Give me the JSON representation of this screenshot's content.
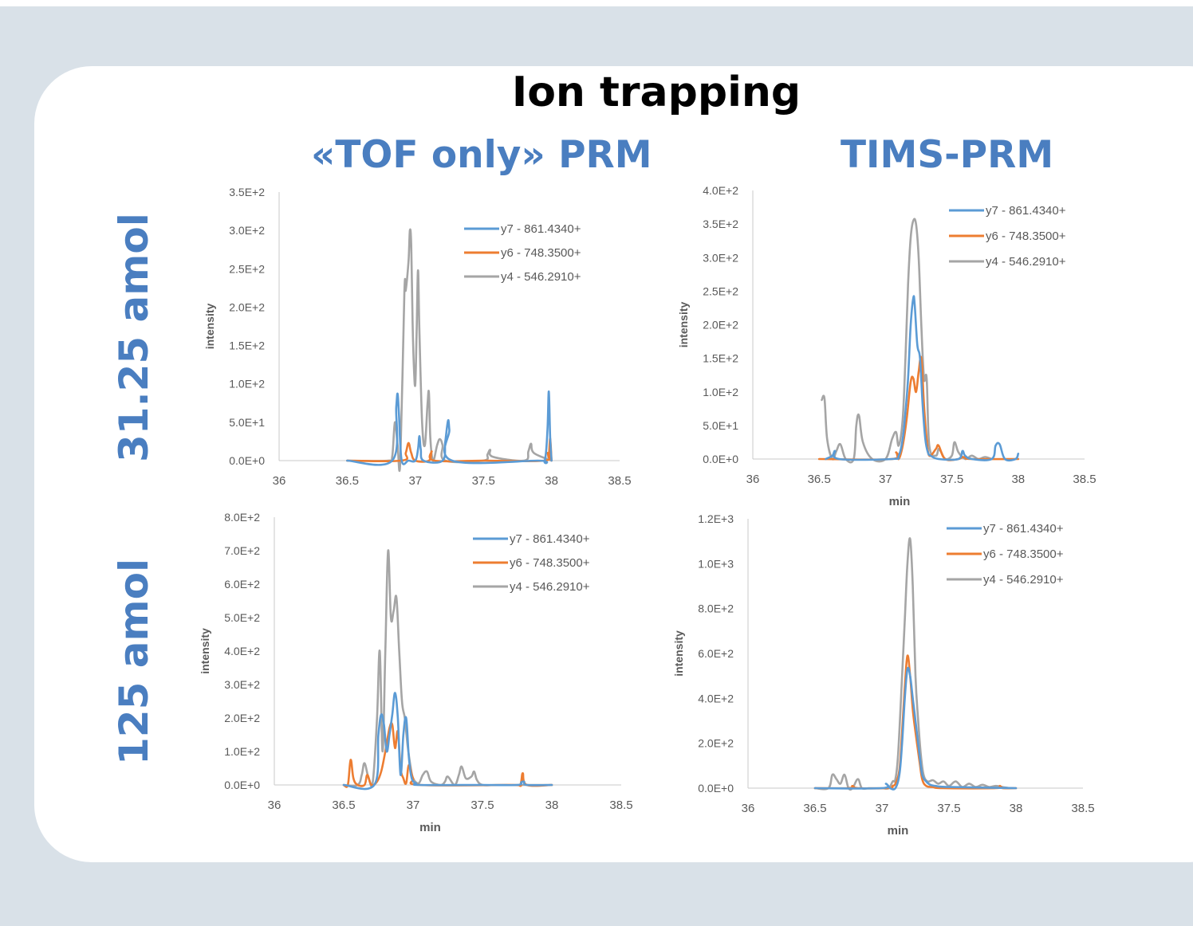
{
  "title": "Ion trapping",
  "columns": [
    "«TOF only» PRM",
    "TIMS-PRM"
  ],
  "rows": [
    "31.25 amol",
    "125 amol"
  ],
  "colors": {
    "accent": "#4a7ec0",
    "y7": "#5b9bd5",
    "y6": "#ed7d31",
    "y4": "#a5a5a5"
  },
  "chart_data": [
    {
      "type": "line",
      "panel": "31.25 amol / «TOF only» PRM",
      "ylabel": "intensity",
      "xlabel": "",
      "xlim": [
        36,
        38.5
      ],
      "x_ticks": [
        "36",
        "36.5",
        "37",
        "37.5",
        "38",
        "38.5"
      ],
      "ylim": [
        0,
        350
      ],
      "y_ticks": [
        "0.0E+0",
        "5.0E+1",
        "1.0E+2",
        "1.5E+2",
        "2.0E+2",
        "2.5E+2",
        "3.0E+2",
        "3.5E+2"
      ],
      "legend": "top-right",
      "series": [
        {
          "name": "y7 - 861.4340+",
          "x": [
            36.5,
            36.83,
            36.86,
            36.87,
            36.88,
            36.9,
            36.95,
            37.0,
            37.02,
            37.03,
            37.04,
            37.06,
            37.2,
            37.22,
            37.24,
            37.25,
            37.27,
            37.9,
            37.95,
            37.97,
            37.98,
            37.99,
            38.0
          ],
          "y": [
            0,
            0,
            70,
            87,
            60,
            0,
            0,
            0,
            15,
            32,
            15,
            0,
            0,
            25,
            52,
            40,
            0,
            0,
            0,
            40,
            90,
            30,
            0
          ]
        },
        {
          "name": "y6 - 748.3500+",
          "x": [
            36.5,
            36.9,
            36.93,
            36.95,
            36.97,
            37.0,
            37.1,
            37.12,
            37.14,
            37.5,
            37.95,
            37.97,
            37.98,
            37.99,
            38.0
          ],
          "y": [
            0,
            0,
            10,
            23,
            10,
            0,
            0,
            12,
            0,
            0,
            0,
            10,
            5,
            29,
            0
          ]
        },
        {
          "name": "y4 - 546.2910+",
          "x": [
            36.5,
            36.8,
            36.83,
            36.85,
            36.87,
            36.89,
            36.92,
            36.93,
            36.95,
            36.96,
            36.97,
            36.98,
            36.99,
            37.0,
            37.01,
            37.02,
            37.03,
            37.05,
            37.07,
            37.09,
            37.1,
            37.11,
            37.13,
            37.16,
            37.18,
            37.2,
            37.22,
            37.5,
            37.53,
            37.55,
            37.57,
            37.8,
            37.83,
            37.85,
            37.87,
            38.0
          ],
          "y": [
            0,
            0,
            5,
            50,
            20,
            0,
            220,
            222,
            260,
            300,
            280,
            180,
            120,
            100,
            170,
            248,
            170,
            50,
            20,
            75,
            88,
            30,
            0,
            20,
            28,
            20,
            0,
            0,
            8,
            14,
            5,
            0,
            12,
            22,
            10,
            0
          ]
        }
      ]
    },
    {
      "type": "line",
      "panel": "31.25 amol / TIMS-PRM",
      "ylabel": "intensity",
      "xlabel": "min",
      "xlim": [
        36,
        38.5
      ],
      "x_ticks": [
        "36",
        "36.5",
        "37",
        "37.5",
        "38",
        "38.5"
      ],
      "ylim": [
        0,
        400
      ],
      "y_ticks": [
        "0.0E+0",
        "5.0E+1",
        "1.0E+2",
        "1.5E+2",
        "2.0E+2",
        "2.5E+2",
        "3.0E+2",
        "3.5E+2",
        "4.0E+2"
      ],
      "legend": "top-right",
      "series": [
        {
          "name": "y7 - 861.4340+",
          "x": [
            36.55,
            36.6,
            36.62,
            36.65,
            37.05,
            37.1,
            37.13,
            37.15,
            37.17,
            37.19,
            37.21,
            37.22,
            37.24,
            37.26,
            37.28,
            37.3,
            37.32,
            37.34,
            37.4,
            37.55,
            37.58,
            37.6,
            37.65,
            37.8,
            37.83,
            37.86,
            37.9,
            37.98,
            38.0
          ],
          "y": [
            0,
            5,
            12,
            0,
            0,
            5,
            30,
            70,
            120,
            200,
            240,
            230,
            170,
            150,
            80,
            30,
            10,
            5,
            0,
            0,
            12,
            5,
            0,
            0,
            20,
            22,
            0,
            0,
            8
          ]
        },
        {
          "name": "y6 - 748.3500+",
          "x": [
            36.5,
            37.05,
            37.08,
            37.1,
            37.13,
            37.16,
            37.19,
            37.21,
            37.23,
            37.25,
            37.27,
            37.29,
            37.31,
            37.33,
            37.38,
            37.4,
            37.45,
            37.55,
            37.58,
            37.6,
            37.65,
            38.0
          ],
          "y": [
            0,
            0,
            10,
            0,
            20,
            60,
            115,
            120,
            100,
            130,
            150,
            80,
            30,
            5,
            15,
            20,
            0,
            0,
            3,
            2,
            0,
            0
          ]
        },
        {
          "name": "y4 - 546.2910+",
          "x": [
            36.52,
            36.54,
            36.56,
            36.6,
            36.63,
            36.66,
            36.7,
            36.76,
            36.78,
            36.8,
            36.83,
            36.9,
            37.0,
            37.05,
            37.08,
            37.1,
            37.13,
            37.15,
            37.17,
            37.19,
            37.21,
            37.23,
            37.25,
            37.27,
            37.29,
            37.31,
            37.33,
            37.38,
            37.4,
            37.42,
            37.45,
            37.5,
            37.52,
            37.55,
            37.6,
            37.65,
            37.7,
            37.75,
            37.8
          ],
          "y": [
            88,
            90,
            30,
            0,
            12,
            22,
            0,
            0,
            50,
            65,
            25,
            0,
            0,
            30,
            40,
            20,
            60,
            150,
            260,
            330,
            355,
            350,
            300,
            200,
            120,
            120,
            20,
            5,
            15,
            10,
            0,
            5,
            25,
            10,
            0,
            5,
            0,
            3,
            0
          ]
        }
      ]
    },
    {
      "type": "line",
      "panel": "125 amol / «TOF only» PRM",
      "ylabel": "intensity",
      "xlabel": "min",
      "xlim": [
        36,
        38.5
      ],
      "x_ticks": [
        "36",
        "36.5",
        "37",
        "37.5",
        "38",
        "38.5"
      ],
      "ylim": [
        0,
        800
      ],
      "y_ticks": [
        "0.0E+0",
        "1.0E+2",
        "2.0E+2",
        "3.0E+2",
        "4.0E+2",
        "5.0E+2",
        "6.0E+2",
        "7.0E+2",
        "8.0E+2"
      ],
      "legend": "top-right",
      "series": [
        {
          "name": "y7 - 861.4340+",
          "x": [
            36.5,
            36.72,
            36.75,
            36.77,
            36.79,
            36.81,
            36.83,
            36.85,
            36.87,
            36.89,
            36.91,
            36.93,
            36.95,
            36.97,
            36.99,
            37.02,
            37.05,
            37.5,
            37.75,
            37.78,
            37.8,
            37.82,
            38.0
          ],
          "y": [
            0,
            0,
            150,
            210,
            180,
            100,
            150,
            210,
            275,
            200,
            30,
            150,
            200,
            80,
            20,
            5,
            0,
            0,
            0,
            8,
            10,
            0,
            0
          ]
        },
        {
          "name": "y6 - 748.3500+",
          "x": [
            36.5,
            36.53,
            36.55,
            36.57,
            36.6,
            36.65,
            36.67,
            36.7,
            36.74,
            36.77,
            36.8,
            36.83,
            36.85,
            36.87,
            36.89,
            36.91,
            36.93,
            36.95,
            36.97,
            37.0,
            37.05,
            37.7,
            37.77,
            37.79,
            37.82,
            38.0
          ],
          "y": [
            0,
            0,
            75,
            20,
            0,
            0,
            30,
            0,
            10,
            40,
            100,
            170,
            180,
            110,
            160,
            50,
            20,
            5,
            60,
            20,
            0,
            0,
            0,
            35,
            0,
            0
          ]
        },
        {
          "name": "y4 - 546.2910+",
          "x": [
            36.5,
            36.6,
            36.63,
            36.65,
            36.68,
            36.71,
            36.74,
            36.76,
            36.78,
            36.8,
            36.82,
            36.84,
            36.86,
            36.88,
            36.9,
            36.92,
            36.94,
            36.96,
            36.98,
            37.0,
            37.04,
            37.07,
            37.1,
            37.13,
            37.2,
            37.23,
            37.25,
            37.3,
            37.33,
            37.35,
            37.38,
            37.42,
            37.44,
            37.46,
            37.5,
            37.6,
            37.8,
            38.0
          ],
          "y": [
            0,
            0,
            30,
            65,
            20,
            10,
            200,
            400,
            100,
            400,
            700,
            500,
            520,
            560,
            400,
            250,
            200,
            120,
            60,
            20,
            5,
            30,
            40,
            10,
            0,
            10,
            25,
            0,
            30,
            55,
            20,
            25,
            40,
            15,
            0,
            0,
            0,
            0
          ]
        }
      ]
    },
    {
      "type": "line",
      "panel": "125 amol / TIMS-PRM",
      "ylabel": "intensity",
      "xlabel": "min",
      "xlim": [
        36,
        38.5
      ],
      "x_ticks": [
        "36",
        "36.5",
        "37",
        "37.5",
        "38",
        "38.5"
      ],
      "ylim": [
        0,
        1200
      ],
      "y_ticks": [
        "0.0E+0",
        "2.0E+2",
        "4.0E+2",
        "6.0E+2",
        "8.0E+2",
        "1.0E+3",
        "1.2E+3"
      ],
      "legend": "top-right",
      "series": [
        {
          "name": "y7 - 861.4340+",
          "x": [
            36.5,
            37.0,
            37.03,
            37.06,
            37.1,
            37.13,
            37.15,
            37.17,
            37.19,
            37.21,
            37.23,
            37.25,
            37.28,
            37.3,
            37.33,
            37.36,
            37.4,
            37.5,
            38.0
          ],
          "y": [
            0,
            0,
            20,
            0,
            0,
            60,
            200,
            400,
            530,
            500,
            400,
            300,
            150,
            60,
            30,
            15,
            10,
            5,
            0
          ]
        },
        {
          "name": "y6 - 748.3500+",
          "x": [
            36.5,
            36.75,
            36.78,
            36.82,
            37.05,
            37.08,
            37.1,
            37.13,
            37.15,
            37.17,
            37.19,
            37.21,
            37.23,
            37.25,
            37.28,
            37.3,
            37.33,
            37.38,
            37.45,
            37.85,
            37.88,
            37.9,
            38.0
          ],
          "y": [
            0,
            0,
            10,
            0,
            0,
            10,
            20,
            80,
            250,
            450,
            590,
            500,
            350,
            250,
            120,
            40,
            10,
            5,
            0,
            0,
            10,
            0,
            0
          ]
        },
        {
          "name": "y4 - 546.2910+",
          "x": [
            36.5,
            36.6,
            36.63,
            36.66,
            36.69,
            36.72,
            36.75,
            36.78,
            36.82,
            36.85,
            36.9,
            36.95,
            37.0,
            37.05,
            37.08,
            37.1,
            37.12,
            37.15,
            37.17,
            37.19,
            37.21,
            37.23,
            37.25,
            37.27,
            37.29,
            37.31,
            37.34,
            37.38,
            37.42,
            37.46,
            37.5,
            37.55,
            37.6,
            37.65,
            37.7,
            37.75,
            37.8,
            37.85,
            37.9,
            37.95
          ],
          "y": [
            0,
            0,
            60,
            40,
            20,
            60,
            0,
            0,
            40,
            0,
            0,
            0,
            0,
            0,
            30,
            40,
            150,
            500,
            750,
            1000,
            1110,
            900,
            500,
            300,
            150,
            60,
            30,
            35,
            20,
            30,
            10,
            30,
            5,
            20,
            5,
            15,
            5,
            10,
            5,
            0
          ]
        }
      ]
    }
  ]
}
